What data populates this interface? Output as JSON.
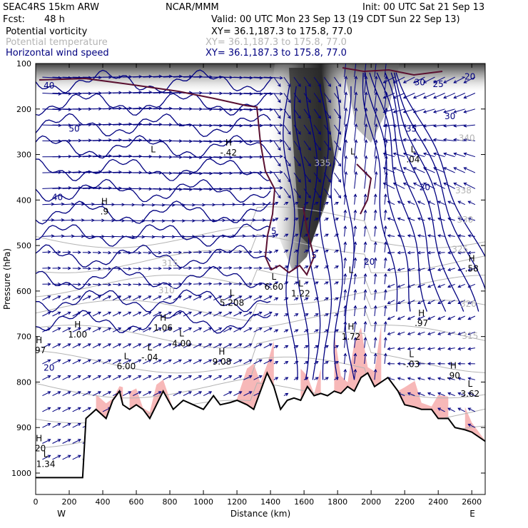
{
  "header": {
    "model": "SEAC4RS 15km ARW",
    "org": "NCAR/MMM",
    "init": "Init: 00 UTC Sat 21 Sep 13",
    "fcst_label": "Fcst:",
    "fcst_value": "48 h",
    "valid": "Valid: 00 UTC Mon 23 Sep 13 (19 CDT Sun 22 Sep 13)"
  },
  "legend": [
    {
      "name": "Potential vorticity",
      "xy": "XY=  36.1,187.3 to 175.8, 77.0",
      "color": "#000000"
    },
    {
      "name": "Potential temperature",
      "xy": "XY=  36.1,187.3 to 175.8, 77.0",
      "color": "#b4b4b4"
    },
    {
      "name": "Horizontal wind speed",
      "xy": "XY=  36.1,187.3 to 175.8, 77.0",
      "color": "#000080"
    }
  ],
  "colors": {
    "pv_shade": "#3a3a3a",
    "pink_fill": "#f7b8b8",
    "wind_contour": "#000080",
    "theta_contour": "#b4b4b4",
    "tropopause": "#5a1030",
    "terrain": "#000000"
  },
  "chart_data": {
    "type": "cross-section",
    "xlabel": "Distance (km)",
    "ylabel": "Pressure (hPa)",
    "xlim": [
      0,
      2680
    ],
    "ylim": [
      1000,
      100
    ],
    "x_ticks": [
      0,
      200,
      400,
      600,
      800,
      1000,
      1200,
      1400,
      1600,
      1800,
      2000,
      2200,
      2400,
      2600
    ],
    "y_ticks": [
      100,
      200,
      300,
      400,
      500,
      600,
      700,
      800,
      900,
      1000
    ],
    "x_end_labels": {
      "left": "W",
      "right": "E"
    },
    "terrain_surface": {
      "x": [
        0,
        280,
        300,
        360,
        420,
        460,
        500,
        520,
        560,
        600,
        640,
        680,
        720,
        760,
        820,
        880,
        940,
        1000,
        1060,
        1100,
        1160,
        1200,
        1260,
        1300,
        1340,
        1380,
        1420,
        1460,
        1500,
        1540,
        1580,
        1620,
        1660,
        1700,
        1740,
        1780,
        1820,
        1860,
        1900,
        1940,
        1980,
        2020,
        2060,
        2100,
        2160,
        2200,
        2260,
        2300,
        2360,
        2400,
        2460,
        2500,
        2560,
        2600,
        2680
      ],
      "p": [
        1010,
        1010,
        880,
        860,
        880,
        840,
        820,
        850,
        860,
        850,
        860,
        880,
        850,
        820,
        860,
        840,
        850,
        860,
        830,
        850,
        845,
        840,
        850,
        860,
        820,
        780,
        810,
        860,
        840,
        835,
        840,
        810,
        830,
        825,
        830,
        820,
        825,
        810,
        820,
        790,
        780,
        810,
        800,
        790,
        820,
        850,
        855,
        860,
        860,
        880,
        880,
        900,
        905,
        910,
        930
      ]
    },
    "wind_speed_labels": [
      {
        "text": "40",
        "x": 80,
        "p": 155
      },
      {
        "text": "50",
        "x": 230,
        "p": 250
      },
      {
        "text": "40",
        "x": 130,
        "p": 400
      },
      {
        "text": "30",
        "x": 2290,
        "p": 148
      },
      {
        "text": "25",
        "x": 2400,
        "p": 152
      },
      {
        "text": "30",
        "x": 2470,
        "p": 222
      },
      {
        "text": "35",
        "x": 2240,
        "p": 250
      },
      {
        "text": "20",
        "x": 2320,
        "p": 378
      },
      {
        "text": "20",
        "x": 1990,
        "p": 542
      },
      {
        "text": "20",
        "x": 80,
        "p": 775
      },
      {
        "text": "5",
        "x": 1420,
        "p": 475
      },
      {
        "text": "5",
        "x": 1660,
        "p": 528
      },
      {
        "text": "-20",
        "x": 2580,
        "p": 135
      }
    ],
    "theta_labels": [
      {
        "text": "315",
        "x": 800,
        "p": 545
      },
      {
        "text": "310",
        "x": 780,
        "p": 605
      },
      {
        "text": "335",
        "x": 1710,
        "p": 325
      },
      {
        "text": "338",
        "x": 2550,
        "p": 385
      },
      {
        "text": "330",
        "x": 2560,
        "p": 450
      },
      {
        "text": "325",
        "x": 2530,
        "p": 515
      },
      {
        "text": "320",
        "x": 2580,
        "p": 635
      },
      {
        "text": "315",
        "x": 2590,
        "p": 705
      },
      {
        "text": "340",
        "x": 2570,
        "p": 270
      }
    ],
    "extrema": [
      {
        "type": "H",
        "value": "-.42",
        "x": 1150,
        "p": 280
      },
      {
        "type": "H",
        "value": ".9",
        "x": 410,
        "p": 410
      },
      {
        "type": "L",
        "value": "",
        "x": 700,
        "p": 295
      },
      {
        "type": "L",
        "value": "",
        "x": 1890,
        "p": 300
      },
      {
        "type": "L",
        "value": ".04",
        "x": 2250,
        "p": 295
      },
      {
        "type": "H",
        "value": ".58",
        "x": 2600,
        "p": 535
      },
      {
        "type": "L",
        "value": "5.208",
        "x": 1170,
        "p": 610
      },
      {
        "type": "L",
        "value": "6.60",
        "x": 1420,
        "p": 575
      },
      {
        "type": "L",
        "value": "1.22",
        "x": 1580,
        "p": 590
      },
      {
        "type": "H",
        "value": "1.00",
        "x": 250,
        "p": 680
      },
      {
        "type": "H",
        "value": "1.06",
        "x": 760,
        "p": 665
      },
      {
        "type": "L",
        "value": "4.00",
        "x": 870,
        "p": 700
      },
      {
        "type": "H",
        "value": "9.08",
        "x": 1110,
        "p": 740
      },
      {
        "type": "L",
        "value": "6.00",
        "x": 540,
        "p": 750
      },
      {
        "type": "L",
        "value": "-.04",
        "x": 680,
        "p": 730
      },
      {
        "type": "H",
        "value": "1.72",
        "x": 1880,
        "p": 685
      },
      {
        "type": "H",
        "value": ".97",
        "x": 2300,
        "p": 655
      },
      {
        "type": "L",
        "value": "-.03",
        "x": 2240,
        "p": 745
      },
      {
        "type": "H",
        "value": ".90",
        "x": 2490,
        "p": 770
      },
      {
        "type": "L",
        "value": "3.62",
        "x": 2590,
        "p": 810
      },
      {
        "type": "H",
        "value": ".97",
        "x": 20,
        "p": 715
      },
      {
        "type": "H",
        "value": ".20",
        "x": 20,
        "p": 930
      },
      {
        "type": "L",
        "value": "1.34",
        "x": 60,
        "p": 965
      },
      {
        "type": "L",
        "value": "",
        "x": 1880,
        "p": 560
      }
    ]
  }
}
